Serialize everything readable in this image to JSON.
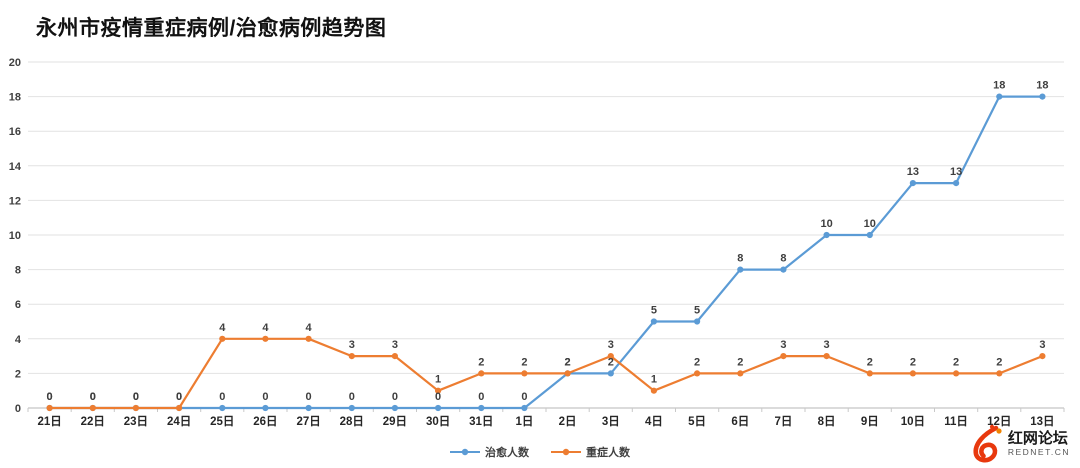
{
  "title": "永州市疫情重症病例/治愈病例趋势图",
  "chart_data": {
    "type": "line",
    "categories": [
      "21日",
      "22日",
      "23日",
      "24日",
      "25日",
      "26日",
      "27日",
      "28日",
      "29日",
      "30日",
      "31日",
      "1日",
      "2日",
      "3日",
      "4日",
      "5日",
      "6日",
      "7日",
      "8日",
      "9日",
      "10日",
      "11日",
      "12日",
      "13日"
    ],
    "series": [
      {
        "name": "治愈人数",
        "color": "#5B9BD5",
        "values": [
          0,
          0,
          0,
          0,
          0,
          0,
          0,
          0,
          0,
          0,
          0,
          0,
          2,
          2,
          5,
          5,
          8,
          8,
          10,
          10,
          13,
          13,
          18,
          18
        ]
      },
      {
        "name": "重症人数",
        "color": "#ED7D31",
        "values": [
          0,
          0,
          0,
          0,
          4,
          4,
          4,
          3,
          3,
          1,
          2,
          2,
          2,
          3,
          1,
          2,
          2,
          3,
          3,
          2,
          2,
          2,
          2,
          3
        ]
      }
    ],
    "ylim": [
      0,
      20
    ],
    "ytick_step": 2,
    "grid": true,
    "data_labels": true,
    "legend_position": "bottom"
  },
  "watermark": {
    "name_cn": "红网论坛",
    "domain": "REDNET.CN"
  }
}
